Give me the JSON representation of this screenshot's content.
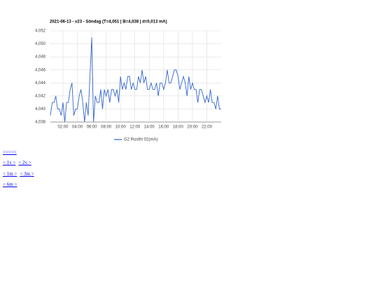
{
  "chart_data": {
    "type": "line",
    "title": "2021-06-13 - v23 - Söndag (T=4,051 | B=4,038 | d=0,013 mA)",
    "x": [
      0.25,
      0.5,
      0.75,
      1,
      1.25,
      1.5,
      1.75,
      2,
      2.25,
      2.5,
      2.75,
      3,
      3.25,
      3.5,
      3.75,
      4,
      4.25,
      4.5,
      4.75,
      5,
      5.25,
      5.5,
      5.75,
      6,
      6.25,
      6.5,
      6.75,
      7,
      7.25,
      7.5,
      7.75,
      8,
      8.25,
      8.5,
      8.75,
      9,
      9.25,
      9.5,
      9.75,
      10,
      10.25,
      10.5,
      10.75,
      11,
      11.25,
      11.5,
      11.75,
      12,
      12.25,
      12.5,
      12.75,
      13,
      13.25,
      13.5,
      13.75,
      14,
      14.25,
      14.5,
      14.75,
      15,
      15.25,
      15.5,
      15.75,
      16,
      16.25,
      16.5,
      16.75,
      17,
      17.25,
      17.5,
      17.75,
      18,
      18.25,
      18.5,
      18.75,
      19,
      19.25,
      19.5,
      19.75,
      20,
      20.25,
      20.5,
      20.75,
      21,
      21.25,
      21.5,
      21.75,
      22,
      22.25,
      22.5,
      22.75,
      23,
      23.25,
      23.5,
      23.75,
      24
    ],
    "series": [
      {
        "name": "G2 Rostfri 02(mA)",
        "color": "#3366cc",
        "values": [
          4.039,
          4.041,
          4.041,
          4.042,
          4.04,
          4.04,
          4.039,
          4.041,
          4.038,
          4.041,
          4.041,
          4.043,
          4.044,
          4.039,
          4.04,
          4.04,
          4.042,
          4.043,
          4.041,
          4.038,
          4.041,
          4.039,
          4.045,
          4.051,
          4.038,
          4.042,
          4.041,
          4.041,
          4.043,
          4.04,
          4.043,
          4.042,
          4.043,
          4.041,
          4.043,
          4.043,
          4.042,
          4.043,
          4.041,
          4.045,
          4.043,
          4.044,
          4.043,
          4.045,
          4.045,
          4.043,
          4.044,
          4.043,
          4.043,
          4.045,
          4.044,
          4.046,
          4.044,
          4.045,
          4.043,
          4.043,
          4.044,
          4.043,
          4.043,
          4.044,
          4.042,
          4.044,
          4.044,
          4.043,
          4.044,
          4.046,
          4.044,
          4.044,
          4.045,
          4.046,
          4.046,
          4.045,
          4.043,
          4.044,
          4.045,
          4.044,
          4.042,
          4.045,
          4.043,
          4.044,
          4.043,
          4.043,
          4.041,
          4.043,
          4.043,
          4.042,
          4.041,
          4.042,
          4.041,
          4.043,
          4.041,
          4.041,
          4.04,
          4.042,
          4.04,
          4.04
        ]
      }
    ],
    "xlim": [
      0.25,
      24
    ],
    "xticks": [
      {
        "value": 2,
        "label": "02:00"
      },
      {
        "value": 4,
        "label": "04:00"
      },
      {
        "value": 6,
        "label": "06:00"
      },
      {
        "value": 8,
        "label": "08:00"
      },
      {
        "value": 10,
        "label": "10:00"
      },
      {
        "value": 12,
        "label": "12:00"
      },
      {
        "value": 14,
        "label": "14:00"
      },
      {
        "value": 16,
        "label": "16:00"
      },
      {
        "value": 18,
        "label": "18:00"
      },
      {
        "value": 20,
        "label": "20:00"
      },
      {
        "value": 22,
        "label": "22:00"
      }
    ],
    "ylim": [
      4.038,
      4.052
    ],
    "yticks": [
      {
        "value": 4.038,
        "label": "4,038"
      },
      {
        "value": 4.04,
        "label": "4,040"
      },
      {
        "value": 4.042,
        "label": "4,042"
      },
      {
        "value": 4.044,
        "label": "4,044"
      },
      {
        "value": 4.046,
        "label": "4,046"
      },
      {
        "value": 4.048,
        "label": "4,048"
      },
      {
        "value": 4.05,
        "label": "4,050"
      },
      {
        "value": 4.052,
        "label": "4,052"
      }
    ],
    "grid": true,
    "legend": "bottom"
  },
  "nav": {
    "rows": [
      [
        "<<<<<"
      ],
      [
        "< 1v >",
        "< 2v >"
      ],
      [
        "< 1m >",
        "< 3m >"
      ],
      [
        "< 6m >"
      ]
    ]
  }
}
